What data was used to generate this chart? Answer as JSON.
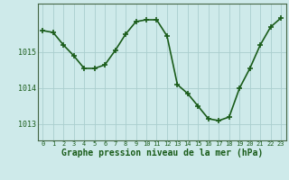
{
  "x": [
    0,
    1,
    2,
    3,
    4,
    5,
    6,
    7,
    8,
    9,
    10,
    11,
    12,
    13,
    14,
    15,
    16,
    17,
    18,
    19,
    20,
    21,
    22,
    23
  ],
  "y": [
    1015.6,
    1015.55,
    1015.2,
    1014.9,
    1014.55,
    1014.55,
    1014.65,
    1015.05,
    1015.5,
    1015.85,
    1015.9,
    1015.9,
    1015.45,
    1014.1,
    1013.85,
    1013.5,
    1013.15,
    1013.1,
    1013.2,
    1014.0,
    1014.55,
    1015.2,
    1015.7,
    1015.95
  ],
  "line_color": "#1a5c1a",
  "marker": "+",
  "markersize": 4,
  "markeredgewidth": 1.2,
  "background_color": "#ceeaea",
  "grid_color": "#aacece",
  "xlabel": "Graphe pression niveau de la mer (hPa)",
  "xlabel_fontsize": 7,
  "tick_fontsize": 5,
  "ytick_fontsize": 6,
  "tick_color": "#1a5c1a",
  "yticks": [
    1013,
    1014,
    1015
  ],
  "ylim": [
    1012.55,
    1016.35
  ],
  "xlim": [
    -0.5,
    23.5
  ],
  "linewidth": 1.2
}
